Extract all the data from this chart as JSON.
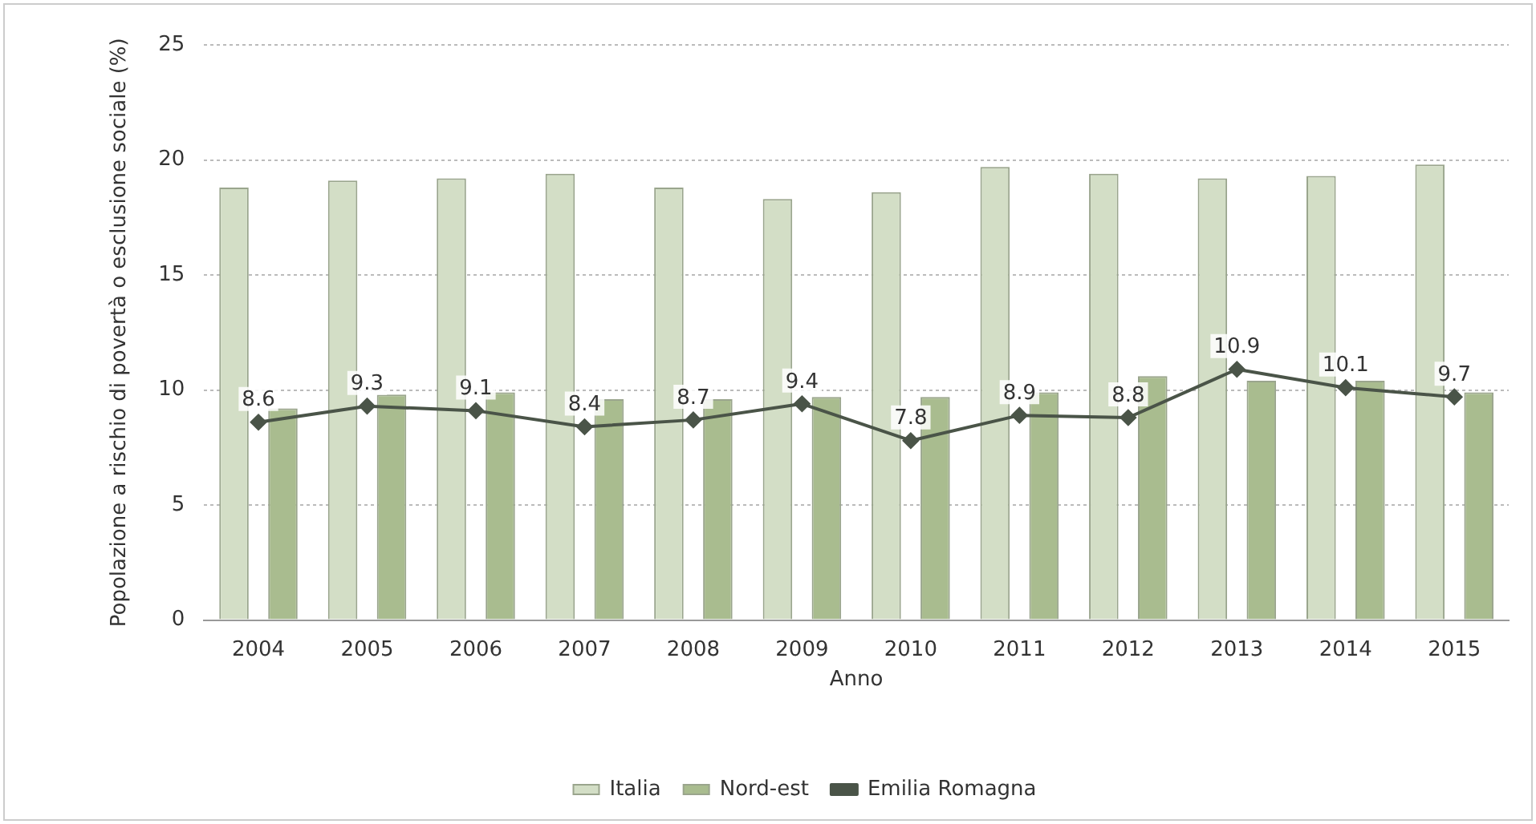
{
  "chart_data": {
    "type": "bar",
    "xlabel": "Anno",
    "ylabel": "Popolazione a rischio di povertà o esclusione sociale (%)",
    "categories": [
      "2004",
      "2005",
      "2006",
      "2007",
      "2008",
      "2009",
      "2010",
      "2011",
      "2012",
      "2013",
      "2014",
      "2015"
    ],
    "series": [
      {
        "name": "Italia",
        "color": "#d3dec6",
        "values": [
          18.8,
          19.1,
          19.2,
          19.4,
          18.8,
          18.3,
          18.6,
          19.7,
          19.4,
          19.2,
          19.3,
          19.8
        ]
      },
      {
        "name": "Nord-est",
        "color": "#a9bc8f",
        "values": [
          9.2,
          9.8,
          9.9,
          9.6,
          9.6,
          9.7,
          9.7,
          9.9,
          10.6,
          10.4,
          10.4,
          9.9
        ]
      },
      {
        "name": "Emilia Romagna",
        "type": "line",
        "color": "#4a5448",
        "marker": "diamond",
        "values": [
          8.6,
          9.3,
          9.1,
          8.4,
          8.7,
          9.4,
          7.8,
          8.9,
          8.8,
          10.9,
          10.1,
          9.7
        ],
        "value_labels": [
          "8.6",
          "9.3",
          "9.1",
          "8.4",
          "8.7",
          "9.4",
          "7.8",
          "8.9",
          "8.8",
          "10.9",
          "10.1",
          "9.7"
        ]
      }
    ],
    "ylim": [
      0,
      25
    ],
    "yticks": [
      0,
      5,
      10,
      15,
      20,
      25
    ],
    "grid": "y",
    "legend": "bottom"
  }
}
